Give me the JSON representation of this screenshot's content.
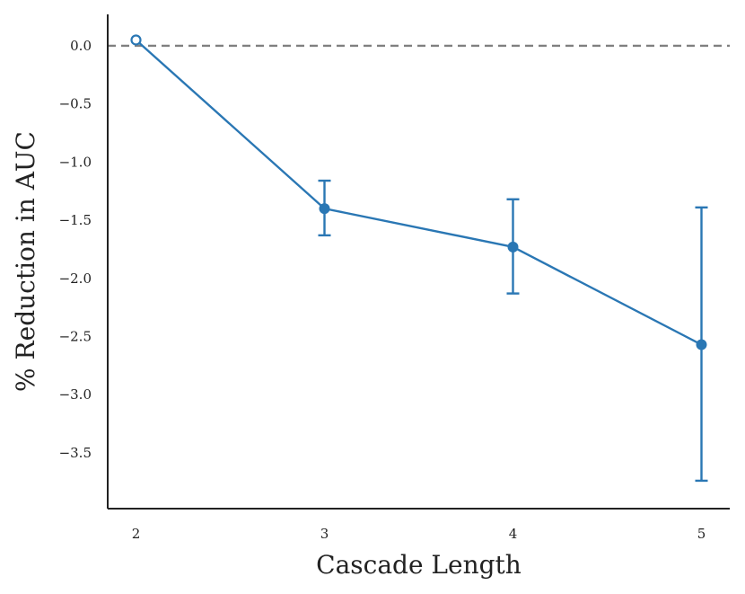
{
  "chart_data": {
    "type": "line",
    "title": "",
    "xlabel": "Cascade Length",
    "ylabel": "% Reduction in AUC",
    "x": [
      2,
      3,
      4,
      5
    ],
    "x_tick_labels": [
      "2",
      "3",
      "4",
      "5"
    ],
    "y_ticks": [
      0.0,
      -0.5,
      -1.0,
      -1.5,
      -2.0,
      -2.5,
      -3.0,
      -3.5
    ],
    "y_tick_labels": [
      "0.0",
      "−0.5",
      "−1.0",
      "−1.5",
      "−2.0",
      "−2.5",
      "−3.0",
      "−3.5"
    ],
    "xlim": [
      1.85,
      5.15
    ],
    "ylim": [
      -3.98,
      0.27
    ],
    "series": [
      {
        "values": [
          0.05,
          -1.4,
          -1.73,
          -2.57
        ],
        "error_lower": [
          0.05,
          -1.63,
          -2.13,
          -3.74
        ],
        "error_upper": [
          0.05,
          -1.16,
          -1.32,
          -1.39
        ],
        "hollow_points": [
          true,
          false,
          false,
          false
        ],
        "color": "#2a77b4"
      }
    ],
    "reference_line": {
      "y": 0.0,
      "style": "dashed",
      "color": "#808080"
    },
    "grid": false,
    "legend": "none"
  }
}
